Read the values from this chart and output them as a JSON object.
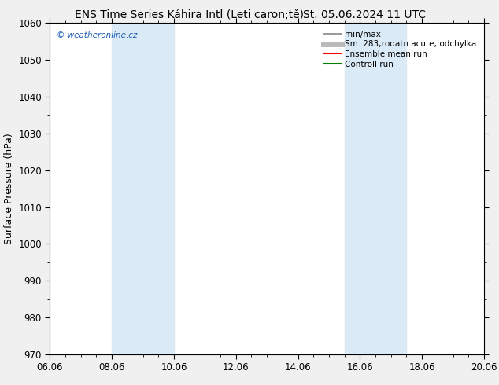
{
  "title_left": "ENS Time Series Káhira Intl (Leti caron;tě)",
  "title_right": "St. 05.06.2024 11 UTC",
  "ylabel": "Surface Pressure (hPa)",
  "ylim": [
    970,
    1060
  ],
  "yticks": [
    970,
    980,
    990,
    1000,
    1010,
    1020,
    1030,
    1040,
    1050,
    1060
  ],
  "xlim_start": 0,
  "xlim_end": 14,
  "xtick_labels": [
    "06.06",
    "08.06",
    "10.06",
    "12.06",
    "14.06",
    "16.06",
    "18.06",
    "20.06"
  ],
  "xtick_positions": [
    0,
    2,
    4,
    6,
    8,
    10,
    12,
    14
  ],
  "shaded_bands": [
    {
      "xmin": 2.0,
      "xmax": 4.0,
      "color": "#daeaf6"
    },
    {
      "xmin": 9.5,
      "xmax": 11.5,
      "color": "#daeaf6"
    }
  ],
  "watermark_text": "© weatheronline.cz",
  "watermark_color": "#1a5cb5",
  "legend_entries": [
    {
      "label": "min/max",
      "color": "#888888",
      "lw": 1.2
    },
    {
      "label": "Sm  283;rodatn acute; odchylka",
      "color": "#bbbbbb",
      "lw": 5
    },
    {
      "label": "Ensemble mean run",
      "color": "red",
      "lw": 1.5
    },
    {
      "label": "Controll run",
      "color": "green",
      "lw": 1.5
    }
  ],
  "bg_color": "#f0f0f0",
  "plot_bg_color": "#ffffff",
  "title_fontsize": 10,
  "axis_label_fontsize": 9,
  "tick_fontsize": 8.5,
  "legend_fontsize": 7.5
}
